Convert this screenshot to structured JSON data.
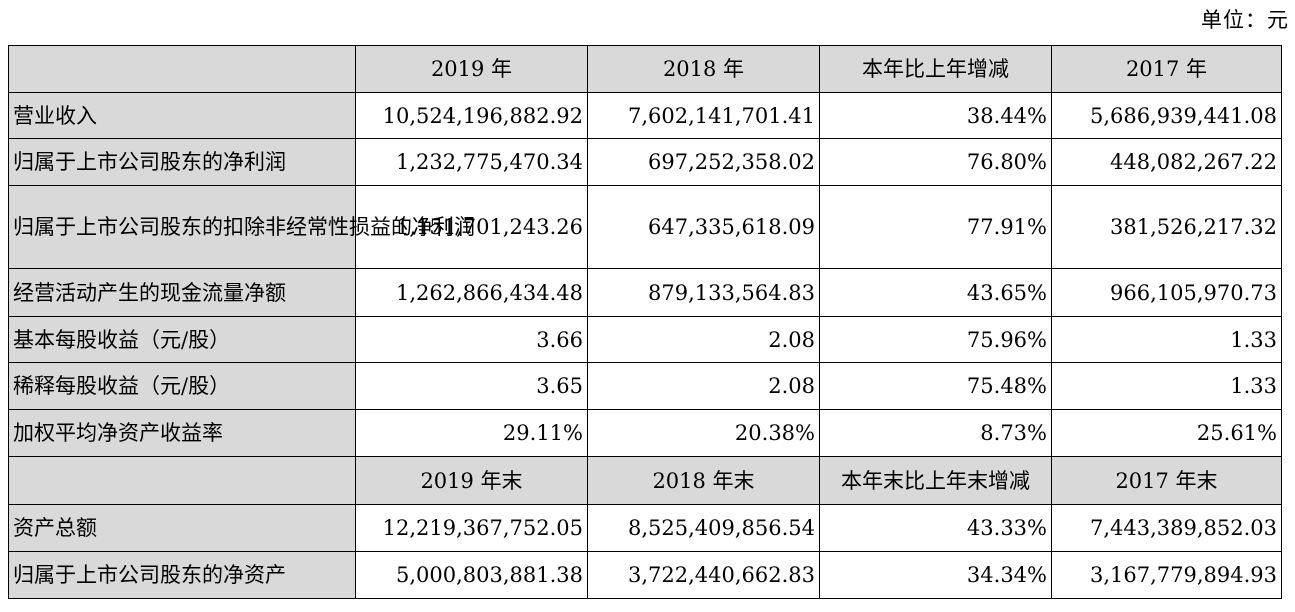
{
  "unit_label": "单位：元",
  "header1": [
    "",
    "2019 年",
    "2018 年",
    "本年比上年增减",
    "2017 年"
  ],
  "rows1": [
    {
      "label": "营业收入",
      "values": [
        "10,524,196,882.92",
        "7,602,141,701.41",
        "38.44%",
        "5,686,939,441.08"
      ]
    },
    {
      "label": "归属于上市公司股东的净利润",
      "values": [
        "1,232,775,470.34",
        "697,252,358.02",
        "76.80%",
        "448,082,267.22"
      ]
    },
    {
      "label": "归属于上市公司股东的扣除非经常性损益的净利润",
      "values": [
        "1,151,701,243.26",
        "647,335,618.09",
        "77.91%",
        "381,526,217.32"
      ]
    },
    {
      "label": "经营活动产生的现金流量净额",
      "values": [
        "1,262,866,434.48",
        "879,133,564.83",
        "43.65%",
        "966,105,970.73"
      ]
    },
    {
      "label": "基本每股收益（元/股）",
      "values": [
        "3.66",
        "2.08",
        "75.96%",
        "1.33"
      ]
    },
    {
      "label": "稀释每股收益（元/股）",
      "values": [
        "3.65",
        "2.08",
        "75.48%",
        "1.33"
      ]
    },
    {
      "label": "加权平均净资产收益率",
      "values": [
        "29.11%",
        "20.38%",
        "8.73%",
        "25.61%"
      ]
    }
  ],
  "header2": [
    "",
    "2019 年末",
    "2018 年末",
    "本年末比上年末增减",
    "2017 年末"
  ],
  "rows2": [
    {
      "label": "资产总额",
      "values": [
        "12,219,367,752.05",
        "8,525,409,856.54",
        "43.33%",
        "7,443,389,852.03"
      ]
    },
    {
      "label": "归属于上市公司股东的净资产",
      "values": [
        "5,000,803,881.38",
        "3,722,440,662.83",
        "34.34%",
        "3,167,779,894.93"
      ]
    }
  ]
}
